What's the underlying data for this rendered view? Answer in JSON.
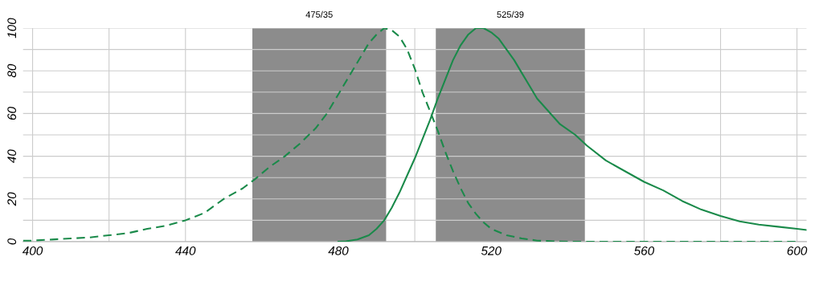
{
  "chart_data": {
    "type": "line",
    "xlim": [
      397.5,
      602.5
    ],
    "xticks": [
      400,
      440,
      480,
      520,
      560,
      600
    ],
    "ylim": [
      0,
      100
    ],
    "yticks": [
      0,
      20,
      40,
      60,
      80,
      100
    ],
    "grid": true,
    "bands": [
      {
        "axis": "x",
        "from": 457.5,
        "to": 492.5,
        "label": "475/35",
        "color": "#8c8c8c"
      },
      {
        "axis": "x",
        "from": 505.5,
        "to": 544.5,
        "label": "525/39",
        "color": "#8c8c8c"
      }
    ],
    "series": [
      {
        "color": "#1a8a4a",
        "line_style": "dashed",
        "x": [
          397.5,
          400,
          405,
          410,
          415,
          420,
          425,
          430,
          435,
          440,
          445,
          450,
          455,
          458,
          462,
          466,
          470,
          474,
          477,
          480,
          483,
          486,
          488,
          490,
          492,
          494,
          496,
          498,
          500,
          502,
          504,
          506,
          508,
          510,
          512,
          514,
          516,
          518,
          520,
          524,
          528,
          532,
          536,
          540,
          545,
          560,
          580,
          600
        ],
        "values": [
          0.5,
          0.5,
          1,
          1.5,
          2,
          3,
          4,
          6,
          7.5,
          10,
          13.5,
          20,
          25,
          29,
          35,
          40,
          46,
          53,
          60,
          69,
          78,
          87,
          93,
          97,
          100,
          99,
          96,
          90,
          81,
          70,
          61,
          52,
          42,
          33,
          25,
          18,
          13,
          9,
          6,
          3,
          1.5,
          0.5,
          0.2,
          0,
          0,
          0,
          0,
          0
        ]
      },
      {
        "color": "#1a8a4a",
        "line_style": "solid",
        "x": [
          480,
          482,
          485,
          488,
          490,
          492,
          494,
          496,
          498,
          500,
          502,
          504,
          506,
          508,
          510,
          512,
          514,
          516,
          518,
          520,
          522,
          524,
          526,
          528,
          530,
          532,
          535,
          538,
          542,
          545,
          550,
          555,
          560,
          565,
          570,
          575,
          580,
          585,
          590,
          595,
          600,
          602.5
        ],
        "values": [
          0,
          0.2,
          1,
          3,
          6,
          10,
          16,
          23,
          31,
          39,
          48,
          57,
          67,
          76,
          85,
          92,
          97,
          100,
          100,
          98,
          95,
          90,
          85,
          79,
          73,
          67,
          61,
          55,
          50,
          45,
          38,
          33,
          28,
          24,
          19,
          15,
          12,
          9.5,
          8,
          7,
          6,
          5.5
        ]
      }
    ]
  }
}
